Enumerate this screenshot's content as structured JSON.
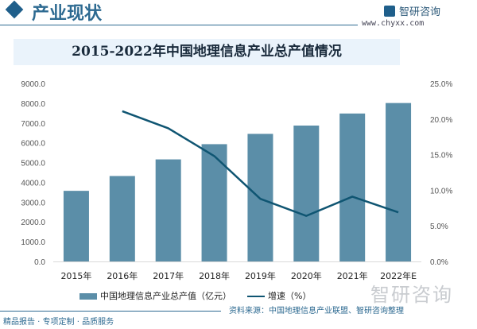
{
  "header": {
    "title": "产业现状",
    "logo_text": "智研咨询",
    "logo_url": "www.chyxx.com"
  },
  "watermark": "智研咨询",
  "footer": {
    "source": "资料来源：中国地理信息产业联盟、智研咨询整理",
    "slogan": "精品报告 · 专项定制 · 品质服务"
  },
  "colors": {
    "bar": "#5b8ea8",
    "line": "#0f5572",
    "accent": "#2d6a91"
  },
  "chart_data": {
    "type": "bar+line",
    "title": "2015-2022年中国地理信息产业总产值情况",
    "categories": [
      "2015年",
      "2016年",
      "2017年",
      "2018年",
      "2019年",
      "2020年",
      "2021年",
      "2022年E"
    ],
    "series": [
      {
        "name": "中国地理信息产业总产值（亿元）",
        "type": "bar",
        "axis": "left",
        "values": [
          3570,
          4320,
          5160,
          5930,
          6450,
          6870,
          7480,
          8010
        ]
      },
      {
        "name": "增速（%）",
        "type": "line",
        "axis": "right",
        "values": [
          null,
          21.1,
          18.7,
          14.8,
          8.8,
          6.4,
          9.1,
          6.9
        ]
      }
    ],
    "y_left": {
      "range": [
        0,
        9000
      ],
      "ticks": [
        "0.0",
        "1000.0",
        "2000.0",
        "3000.0",
        "4000.0",
        "5000.0",
        "6000.0",
        "7000.0",
        "8000.0",
        "9000.0"
      ]
    },
    "y_right": {
      "range": [
        0,
        25
      ],
      "ticks": [
        "0.0%",
        "5.0%",
        "10.0%",
        "15.0%",
        "20.0%",
        "25.0%"
      ]
    },
    "grid": false,
    "legend": "bottom"
  }
}
